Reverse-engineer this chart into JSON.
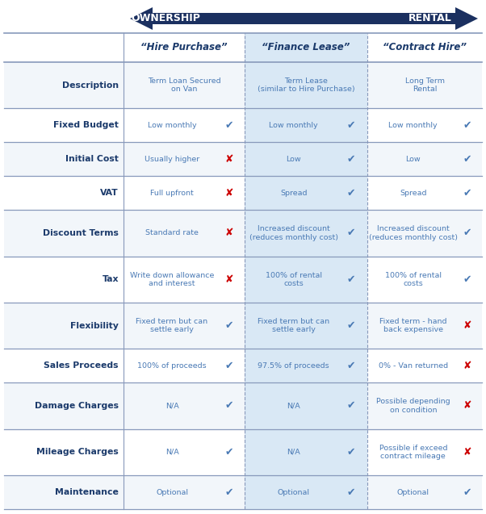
{
  "title_left": "OWNERSHIP",
  "title_right": "RENTAL",
  "col_headers": [
    "“Hire Purchase”",
    "“Finance Lease”",
    "“Contract Hire”"
  ],
  "row_labels": [
    "Description",
    "Fixed Budget",
    "Initial Cost",
    "VAT",
    "Discount Terms",
    "Tax",
    "Flexibility",
    "Sales Proceeds",
    "Damage Charges",
    "Mileage Charges",
    "Maintenance"
  ],
  "rows": [
    [
      "Term Loan Secured\non Van",
      "Term Lease\n(similar to Hire Purchase)",
      "Long Term\nRental"
    ],
    [
      "Low monthly",
      "Low monthly",
      "Low monthly"
    ],
    [
      "Usually higher",
      "Low",
      "Low"
    ],
    [
      "Full upfront",
      "Spread",
      "Spread"
    ],
    [
      "Standard rate",
      "Increased discount\n(reduces monthly cost)",
      "Increased discount\n(reduces monthly cost)"
    ],
    [
      "Write down allowance\nand interest",
      "100% of rental\ncosts",
      "100% of rental\ncosts"
    ],
    [
      "Fixed term but can\nsettle early",
      "Fixed term but can\nsettle early",
      "Fixed term - hand\nback expensive"
    ],
    [
      "100% of proceeds",
      "97.5% of proceeds",
      "0% - Van returned"
    ],
    [
      "N/A",
      "N/A",
      "Possible depending\non condition"
    ],
    [
      "N/A",
      "N/A",
      "Possible if exceed\ncontract mileage"
    ],
    [
      "Optional",
      "Optional",
      "Optional"
    ]
  ],
  "marks": [
    [
      "",
      "",
      "",
      ""
    ],
    [
      "",
      "✔",
      "✔",
      "✔"
    ],
    [
      "",
      "✘",
      "✔",
      "✔"
    ],
    [
      "",
      "✘",
      "✔",
      "✔"
    ],
    [
      "",
      "✘",
      "✔",
      "✔"
    ],
    [
      "",
      "✘",
      "✔",
      "✔"
    ],
    [
      "",
      "✔",
      "✔",
      "✘"
    ],
    [
      "",
      "✔",
      "✔",
      "✘"
    ],
    [
      "",
      "✔",
      "✔",
      "✘"
    ],
    [
      "",
      "✔",
      "✔",
      "✘"
    ],
    [
      "",
      "✔",
      "✔",
      "✔"
    ]
  ],
  "dark_blue": "#1b3a6b",
  "light_blue_bg": "#d9e8f5",
  "row_label_color": "#1b3a6b",
  "text_color": "#4a7ab5",
  "check_color": "#4a7ab5",
  "cross_color": "#cc0000",
  "line_color": "#8899bb",
  "arrow_color": "#1b3060",
  "white": "#ffffff"
}
